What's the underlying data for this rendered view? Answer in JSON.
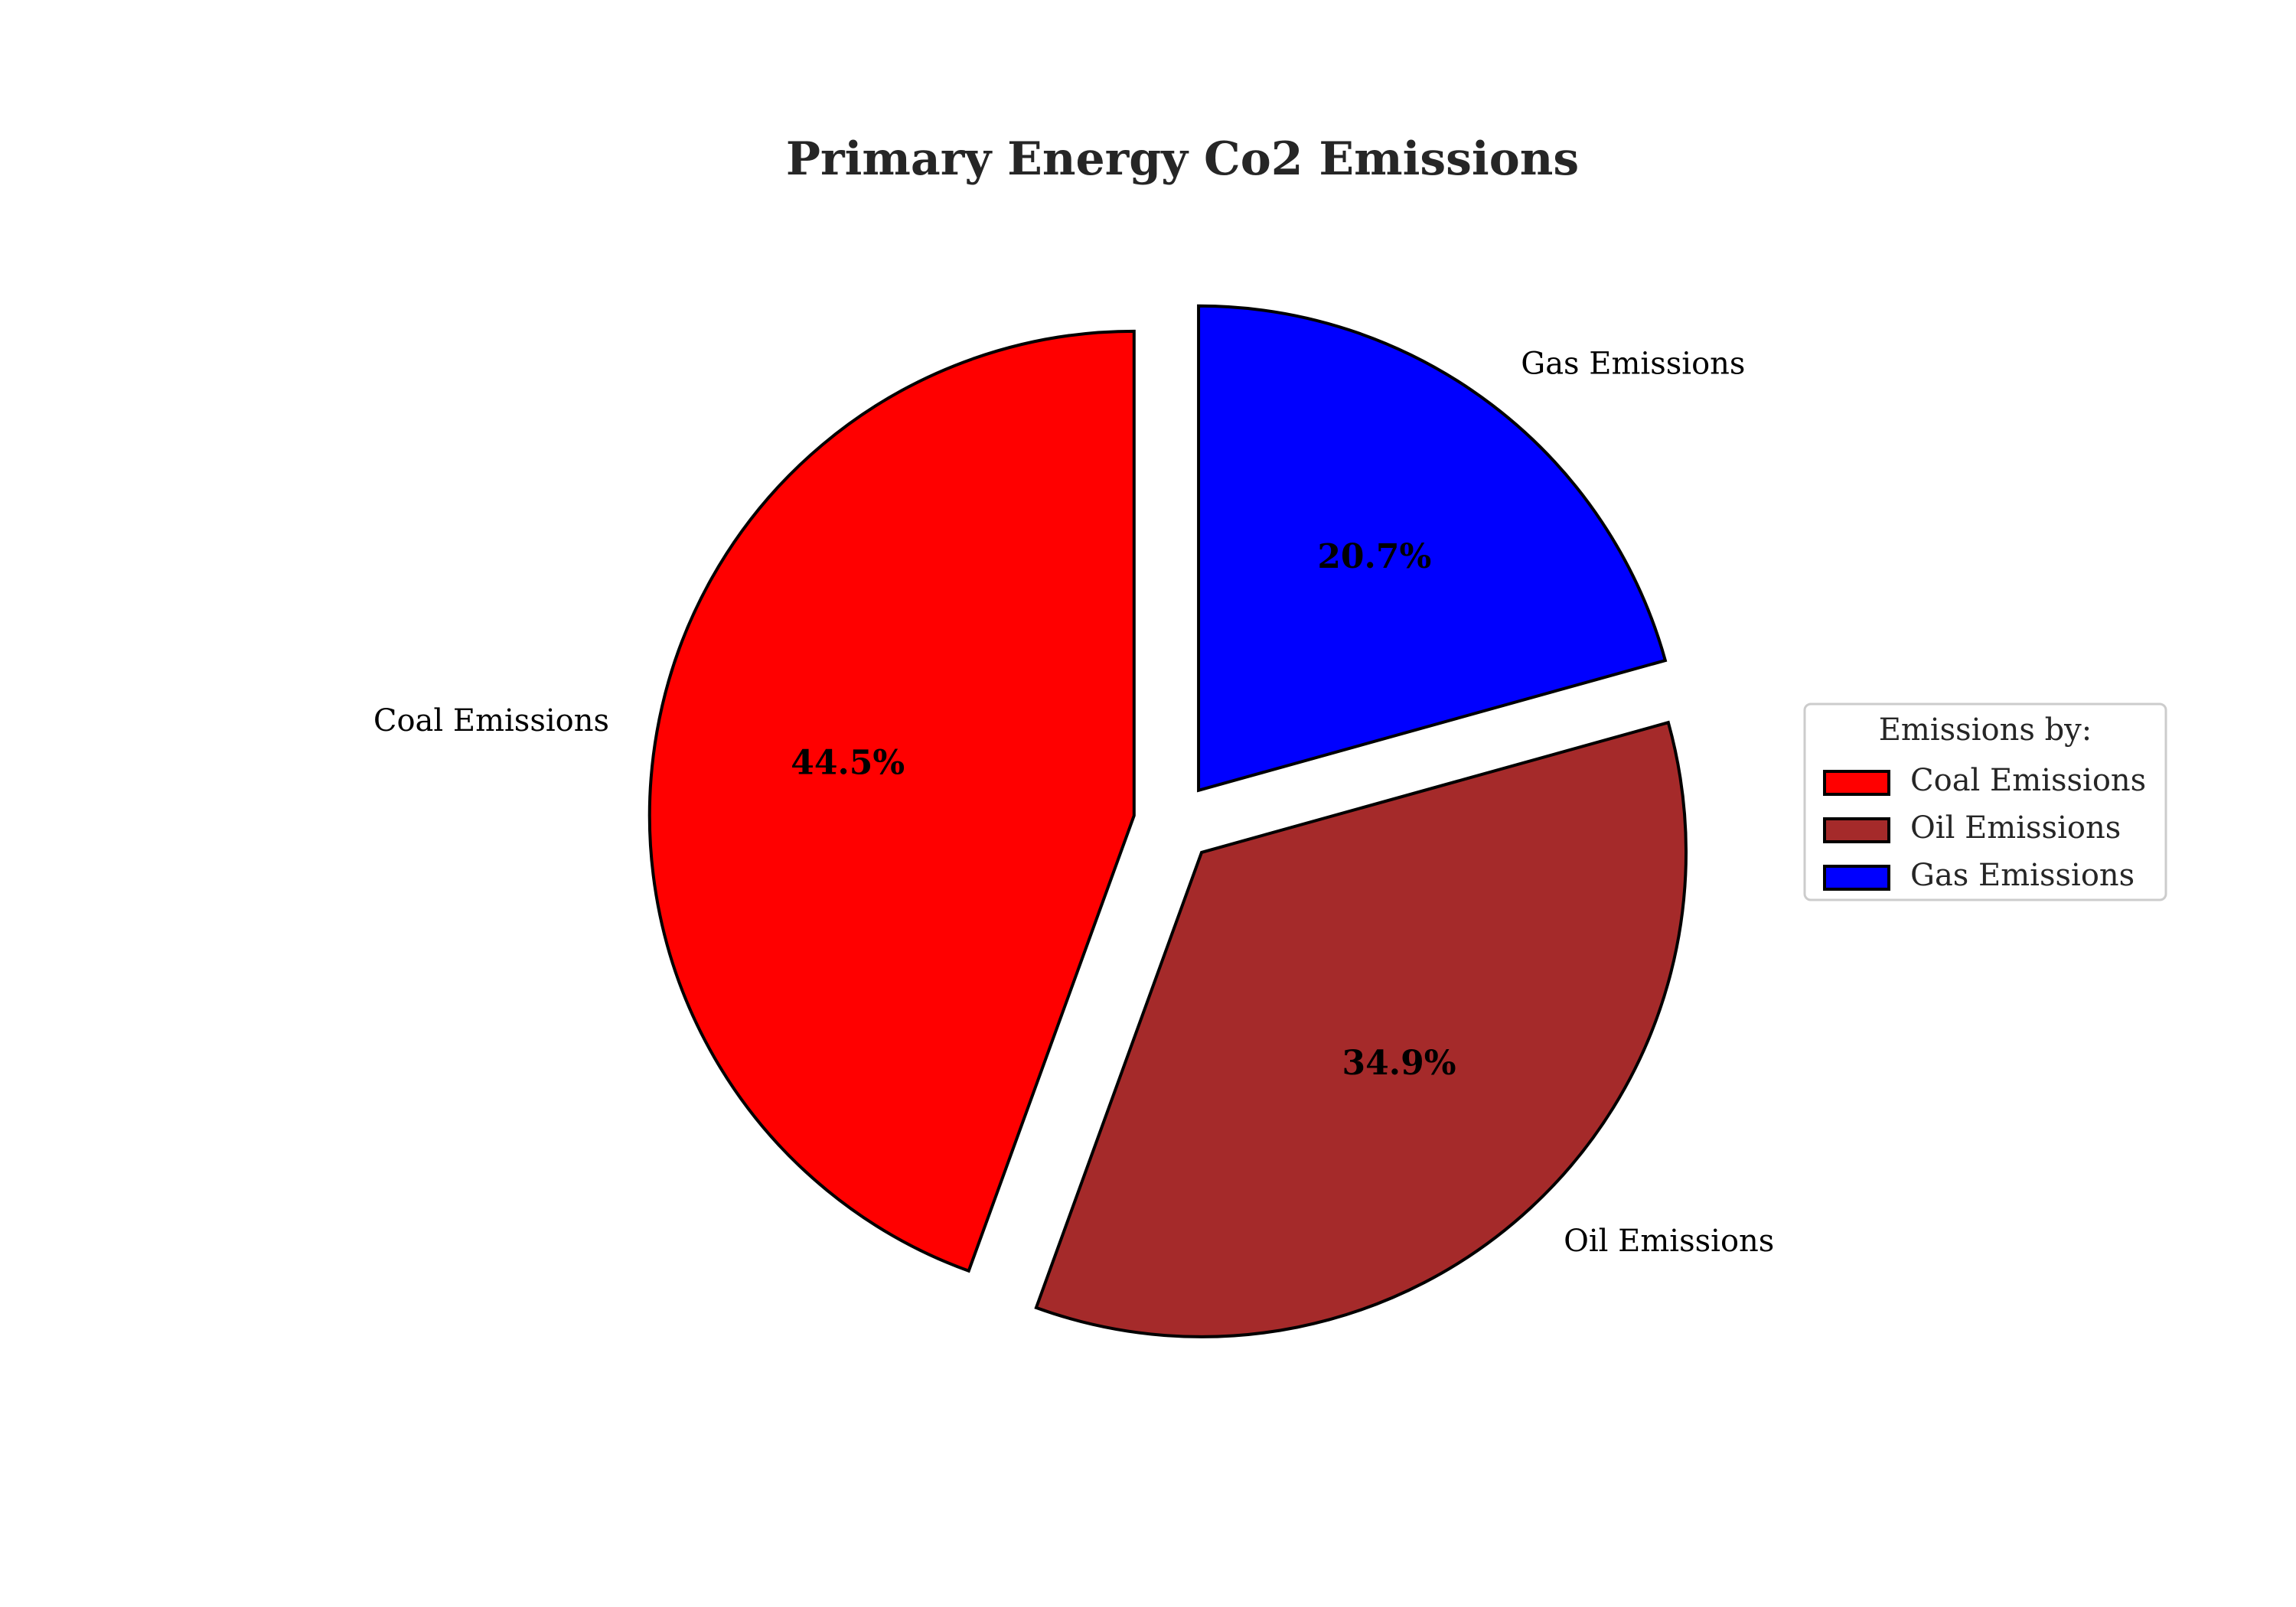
{
  "chart_data": {
    "type": "pie",
    "title": "Primary Energy Co2 Emissions",
    "categories": [
      "Coal Emissions",
      "Oil Emissions",
      "Gas Emissions"
    ],
    "values": [
      44.5,
      34.9,
      20.7
    ],
    "percent_labels": [
      "44.5%",
      "34.9%",
      "20.7%"
    ],
    "colors": [
      "#ff0000",
      "#a52a2a",
      "#0000ff"
    ],
    "edge_color": "#000000",
    "exploded": [
      true,
      true,
      true
    ],
    "start_angle_deg": 90,
    "direction": "counterclockwise",
    "legend": {
      "title": "Emissions by:",
      "entries": [
        "Coal Emissions",
        "Oil Emissions",
        "Gas Emissions"
      ],
      "placement": "center-right"
    }
  }
}
